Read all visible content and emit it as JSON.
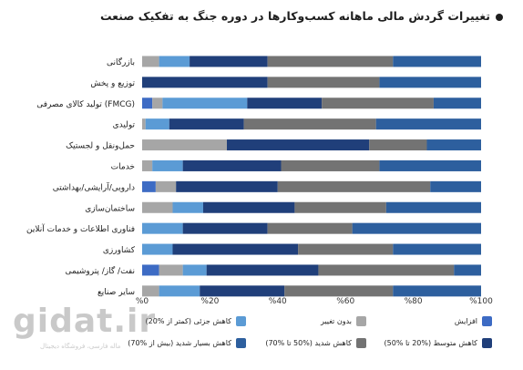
{
  "title": "تغییرات گردش مالی ماهانه کسب‌وکارها در دوره جنگ به تفکیک صنعت",
  "watermark": {
    "brand": "gidat.ir",
    "tagline": "ماله فارسی، فروشگاه دیجیتال"
  },
  "chart_data": {
    "type": "bar",
    "orientation": "horizontal",
    "stacked": true,
    "xlim": [
      0,
      100
    ],
    "xticks": [
      "%0",
      "%20",
      "%40",
      "%60",
      "%80",
      "%100"
    ],
    "xtick_values": [
      0,
      20,
      40,
      60,
      80,
      100
    ],
    "grid": false,
    "legend_position": "bottom",
    "categories": [
      "بازرگانی",
      "توزیع و پخش",
      "تولید کالای مصرفی (FMCG)",
      "تولیدی",
      "حمل‌ونقل و لجستیک",
      "خدمات",
      "دارویی/آرایشی/بهداشتی",
      "ساختمان‌سازی",
      "فناوری اطلاعات و خدمات آنلاین",
      "کشاورزی",
      "نفت/ گاز/ پتروشیمی",
      "سایر صنایع"
    ],
    "series": [
      {
        "name": "افزایش",
        "color": "#3d6bc4",
        "values": [
          0,
          0,
          3,
          0,
          0,
          0,
          4,
          0,
          0,
          0,
          5,
          0
        ]
      },
      {
        "name": "بدون تغییر",
        "color": "#a6a6a6",
        "values": [
          5,
          0,
          3,
          1,
          25,
          3,
          6,
          9,
          0,
          0,
          7,
          5
        ]
      },
      {
        "name": "کاهش جزئی (کمتر از %20)",
        "color": "#5b9bd5",
        "values": [
          9,
          0,
          25,
          7,
          0,
          9,
          0,
          9,
          12,
          9,
          7,
          12
        ]
      },
      {
        "name": "کاهش متوسط (%20 تا %50)",
        "color": "#203f7a",
        "values": [
          23,
          37,
          22,
          22,
          42,
          29,
          30,
          27,
          25,
          37,
          33,
          25
        ]
      },
      {
        "name": "کاهش شدید (%50 تا %70)",
        "color": "#737373",
        "values": [
          37,
          33,
          33,
          39,
          17,
          29,
          45,
          27,
          25,
          28,
          40,
          32
        ]
      },
      {
        "name": "کاهش بسیار شدید (بیش از %70)",
        "color": "#2d5f9e",
        "values": [
          26,
          30,
          14,
          31,
          16,
          30,
          15,
          28,
          38,
          26,
          8,
          26
        ]
      }
    ]
  }
}
